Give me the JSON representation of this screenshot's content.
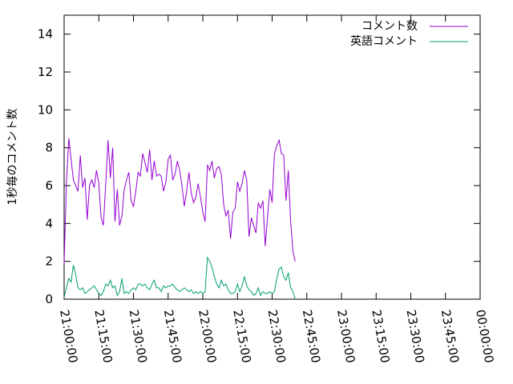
{
  "chart_data": {
    "type": "line",
    "title": "",
    "xlabel": "",
    "ylabel": "1秒毎のコメント数",
    "xlim": [
      "21:00:00",
      "00:00:00"
    ],
    "ylim": [
      0,
      15
    ],
    "grid": false,
    "legend_position": "top-right",
    "xticks": [
      "21:00:00",
      "21:15:00",
      "21:30:00",
      "21:45:00",
      "22:00:00",
      "22:15:00",
      "22:30:00",
      "22:45:00",
      "23:00:00",
      "23:15:00",
      "23:30:00",
      "23:45:00",
      "00:00:00"
    ],
    "yticks": [
      0,
      2,
      4,
      6,
      8,
      10,
      12,
      14
    ],
    "series": [
      {
        "name": "コメント数",
        "color": "#9400d3",
        "points": [
          [
            "21:00:00",
            1.9
          ],
          [
            "21:01:00",
            6.2
          ],
          [
            "21:02:00",
            8.5
          ],
          [
            "21:03:00",
            7.4
          ],
          [
            "21:04:00",
            6.3
          ],
          [
            "21:05:00",
            6.0
          ],
          [
            "21:06:00",
            5.7
          ],
          [
            "21:07:00",
            7.6
          ],
          [
            "21:08:00",
            5.9
          ],
          [
            "21:09:00",
            6.4
          ],
          [
            "21:10:00",
            4.2
          ],
          [
            "21:11:00",
            6.0
          ],
          [
            "21:12:00",
            6.3
          ],
          [
            "21:13:00",
            5.9
          ],
          [
            "21:14:00",
            6.8
          ],
          [
            "21:15:00",
            6.1
          ],
          [
            "21:16:00",
            4.3
          ],
          [
            "21:17:00",
            3.9
          ],
          [
            "21:18:00",
            6.1
          ],
          [
            "21:19:00",
            8.4
          ],
          [
            "21:20:00",
            6.4
          ],
          [
            "21:21:00",
            8.0
          ],
          [
            "21:22:00",
            4.1
          ],
          [
            "21:23:00",
            5.8
          ],
          [
            "21:24:00",
            3.9
          ],
          [
            "21:25:00",
            4.4
          ],
          [
            "21:26:00",
            5.8
          ],
          [
            "21:27:00",
            6.3
          ],
          [
            "21:28:00",
            6.7
          ],
          [
            "21:29:00",
            5.2
          ],
          [
            "21:30:00",
            4.9
          ],
          [
            "21:31:00",
            5.7
          ],
          [
            "21:32:00",
            6.7
          ],
          [
            "21:33:00",
            6.5
          ],
          [
            "21:34:00",
            7.7
          ],
          [
            "21:35:00",
            7.2
          ],
          [
            "21:36:00",
            6.7
          ],
          [
            "21:37:00",
            7.9
          ],
          [
            "21:38:00",
            6.3
          ],
          [
            "21:39:00",
            7.3
          ],
          [
            "21:40:00",
            6.5
          ],
          [
            "21:41:00",
            6.6
          ],
          [
            "21:42:00",
            6.5
          ],
          [
            "21:43:00",
            5.7
          ],
          [
            "21:44:00",
            6.2
          ],
          [
            "21:45:00",
            7.4
          ],
          [
            "21:46:00",
            7.6
          ],
          [
            "21:47:00",
            6.3
          ],
          [
            "21:48:00",
            6.6
          ],
          [
            "21:49:00",
            7.3
          ],
          [
            "21:50:00",
            6.8
          ],
          [
            "21:51:00",
            6.0
          ],
          [
            "21:52:00",
            4.9
          ],
          [
            "21:53:00",
            5.7
          ],
          [
            "21:54:00",
            6.7
          ],
          [
            "21:55:00",
            5.6
          ],
          [
            "21:56:00",
            5.1
          ],
          [
            "21:57:00",
            5.4
          ],
          [
            "21:58:00",
            6.1
          ],
          [
            "21:59:00",
            5.4
          ],
          [
            "22:00:00",
            4.6
          ],
          [
            "22:01:00",
            4.1
          ],
          [
            "22:02:00",
            7.1
          ],
          [
            "22:03:00",
            6.8
          ],
          [
            "22:04:00",
            7.3
          ],
          [
            "22:05:00",
            6.4
          ],
          [
            "22:06:00",
            6.9
          ],
          [
            "22:07:00",
            7.0
          ],
          [
            "22:08:00",
            6.6
          ],
          [
            "22:09:00",
            5.0
          ],
          [
            "22:10:00",
            4.4
          ],
          [
            "22:11:00",
            4.7
          ],
          [
            "22:12:00",
            3.2
          ],
          [
            "22:13:00",
            4.6
          ],
          [
            "22:14:00",
            4.8
          ],
          [
            "22:15:00",
            6.2
          ],
          [
            "22:16:00",
            5.7
          ],
          [
            "22:17:00",
            6.1
          ],
          [
            "22:18:00",
            6.8
          ],
          [
            "22:19:00",
            6.3
          ],
          [
            "22:20:00",
            3.3
          ],
          [
            "22:21:00",
            4.3
          ],
          [
            "22:22:00",
            3.9
          ],
          [
            "22:23:00",
            3.5
          ],
          [
            "22:24:00",
            5.1
          ],
          [
            "22:25:00",
            4.8
          ],
          [
            "22:26:00",
            5.2
          ],
          [
            "22:27:00",
            2.8
          ],
          [
            "22:28:00",
            4.3
          ],
          [
            "22:29:00",
            5.8
          ],
          [
            "22:30:00",
            5.1
          ],
          [
            "22:31:00",
            7.7
          ],
          [
            "22:32:00",
            8.1
          ],
          [
            "22:33:00",
            8.4
          ],
          [
            "22:34:00",
            7.7
          ],
          [
            "22:35:00",
            7.6
          ],
          [
            "22:36:00",
            5.2
          ],
          [
            "22:37:00",
            6.8
          ],
          [
            "22:38:00",
            4.1
          ],
          [
            "22:39:00",
            2.5
          ],
          [
            "22:40:00",
            2.0
          ]
        ]
      },
      {
        "name": "英語コメント",
        "color": "#009e73",
        "points": [
          [
            "21:00:00",
            0.1
          ],
          [
            "21:01:00",
            0.6
          ],
          [
            "21:02:00",
            1.1
          ],
          [
            "21:03:00",
            0.9
          ],
          [
            "21:04:00",
            1.8
          ],
          [
            "21:05:00",
            1.3
          ],
          [
            "21:06:00",
            0.6
          ],
          [
            "21:07:00",
            0.5
          ],
          [
            "21:08:00",
            0.6
          ],
          [
            "21:09:00",
            0.3
          ],
          [
            "21:10:00",
            0.4
          ],
          [
            "21:11:00",
            0.5
          ],
          [
            "21:12:00",
            0.6
          ],
          [
            "21:13:00",
            0.7
          ],
          [
            "21:14:00",
            0.5
          ],
          [
            "21:15:00",
            0.3
          ],
          [
            "21:16:00",
            0.2
          ],
          [
            "21:17:00",
            0.4
          ],
          [
            "21:18:00",
            0.8
          ],
          [
            "21:19:00",
            0.7
          ],
          [
            "21:20:00",
            1.0
          ],
          [
            "21:21:00",
            0.6
          ],
          [
            "21:22:00",
            0.7
          ],
          [
            "21:23:00",
            0.2
          ],
          [
            "21:24:00",
            0.4
          ],
          [
            "21:25:00",
            1.1
          ],
          [
            "21:26:00",
            0.3
          ],
          [
            "21:27:00",
            0.4
          ],
          [
            "21:28:00",
            0.3
          ],
          [
            "21:29:00",
            0.5
          ],
          [
            "21:30:00",
            0.6
          ],
          [
            "21:31:00",
            0.5
          ],
          [
            "21:32:00",
            0.8
          ],
          [
            "21:33:00",
            0.8
          ],
          [
            "21:34:00",
            0.7
          ],
          [
            "21:35:00",
            0.8
          ],
          [
            "21:36:00",
            0.6
          ],
          [
            "21:37:00",
            0.5
          ],
          [
            "21:38:00",
            0.8
          ],
          [
            "21:39:00",
            1.0
          ],
          [
            "21:40:00",
            0.6
          ],
          [
            "21:41:00",
            0.6
          ],
          [
            "21:42:00",
            0.4
          ],
          [
            "21:43:00",
            0.7
          ],
          [
            "21:44:00",
            0.6
          ],
          [
            "21:45:00",
            0.7
          ],
          [
            "21:46:00",
            0.7
          ],
          [
            "21:47:00",
            0.8
          ],
          [
            "21:48:00",
            0.6
          ],
          [
            "21:49:00",
            0.5
          ],
          [
            "21:50:00",
            0.4
          ],
          [
            "21:51:00",
            0.5
          ],
          [
            "21:52:00",
            0.6
          ],
          [
            "21:53:00",
            0.5
          ],
          [
            "21:54:00",
            0.4
          ],
          [
            "21:55:00",
            0.5
          ],
          [
            "21:56:00",
            0.3
          ],
          [
            "21:57:00",
            0.4
          ],
          [
            "21:58:00",
            0.3
          ],
          [
            "21:59:00",
            0.4
          ],
          [
            "22:00:00",
            0.3
          ],
          [
            "22:01:00",
            0.4
          ],
          [
            "22:02:00",
            2.2
          ],
          [
            "22:03:00",
            2.0
          ],
          [
            "22:04:00",
            1.7
          ],
          [
            "22:05:00",
            1.2
          ],
          [
            "22:06:00",
            0.8
          ],
          [
            "22:07:00",
            0.6
          ],
          [
            "22:08:00",
            1.0
          ],
          [
            "22:09:00",
            0.7
          ],
          [
            "22:10:00",
            0.8
          ],
          [
            "22:11:00",
            0.5
          ],
          [
            "22:12:00",
            0.3
          ],
          [
            "22:13:00",
            0.3
          ],
          [
            "22:14:00",
            0.4
          ],
          [
            "22:15:00",
            0.8
          ],
          [
            "22:16:00",
            0.4
          ],
          [
            "22:17:00",
            0.7
          ],
          [
            "22:18:00",
            1.2
          ],
          [
            "22:19:00",
            0.7
          ],
          [
            "22:20:00",
            0.5
          ],
          [
            "22:21:00",
            0.4
          ],
          [
            "22:22:00",
            0.2
          ],
          [
            "22:23:00",
            0.3
          ],
          [
            "22:24:00",
            0.6
          ],
          [
            "22:25:00",
            0.2
          ],
          [
            "22:26:00",
            0.4
          ],
          [
            "22:27:00",
            0.3
          ],
          [
            "22:28:00",
            0.3
          ],
          [
            "22:29:00",
            0.4
          ],
          [
            "22:30:00",
            0.3
          ],
          [
            "22:31:00",
            0.4
          ],
          [
            "22:32:00",
            1.1
          ],
          [
            "22:33:00",
            1.6
          ],
          [
            "22:34:00",
            1.7
          ],
          [
            "22:35:00",
            1.2
          ],
          [
            "22:36:00",
            1.0
          ],
          [
            "22:37:00",
            1.4
          ],
          [
            "22:38:00",
            0.6
          ],
          [
            "22:39:00",
            0.4
          ],
          [
            "22:40:00",
            0.0
          ]
        ]
      }
    ]
  }
}
